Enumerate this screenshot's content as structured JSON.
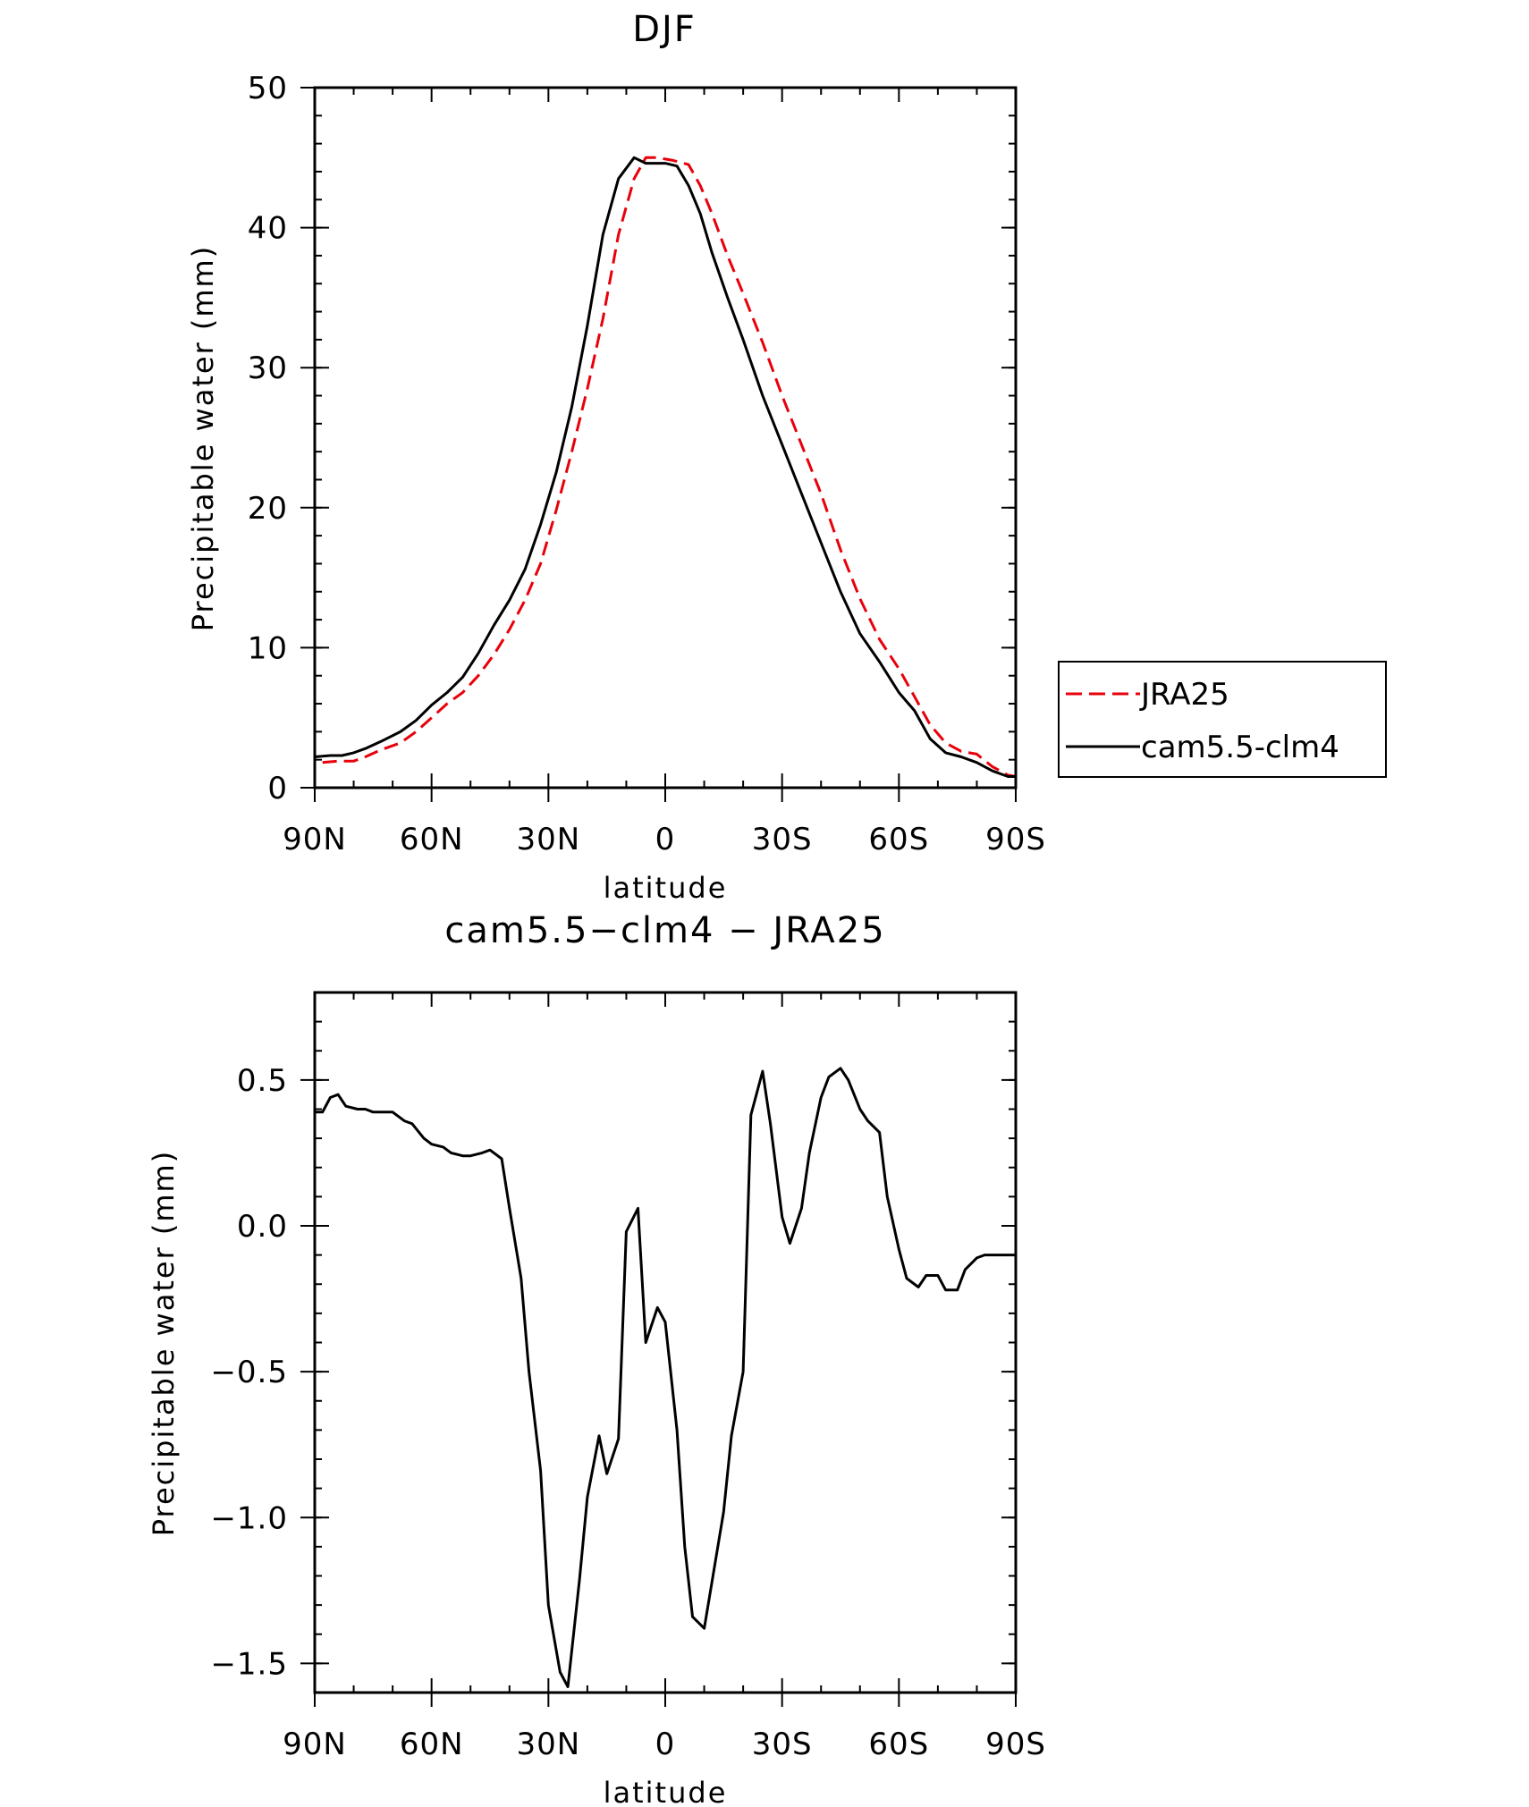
{
  "chart_data": [
    {
      "type": "line",
      "title": "DJF",
      "xlabel": "latitude",
      "ylabel": "Precipitable water (mm)",
      "x_ticks": [
        {
          "value": -90,
          "label": "90N"
        },
        {
          "value": -60,
          "label": "60N"
        },
        {
          "value": -30,
          "label": "30N"
        },
        {
          "value": 0,
          "label": "0"
        },
        {
          "value": 30,
          "label": "30S"
        },
        {
          "value": 60,
          "label": "60S"
        },
        {
          "value": 90,
          "label": "90S"
        }
      ],
      "xlim": [
        -90,
        90
      ],
      "y_ticks": [
        {
          "value": 0,
          "label": "0"
        },
        {
          "value": 10,
          "label": "10"
        },
        {
          "value": 20,
          "label": "20"
        },
        {
          "value": 30,
          "label": "30"
        },
        {
          "value": 40,
          "label": "40"
        },
        {
          "value": 50,
          "label": "50"
        }
      ],
      "ylim": [
        0,
        50
      ],
      "grid": false,
      "legend_position": "right",
      "series": [
        {
          "name": "JRA25",
          "color": "#e8000b",
          "dash": "dashed",
          "x": [
            -88,
            -84,
            -80,
            -77,
            -73,
            -68,
            -64,
            -60,
            -56,
            -52,
            -48,
            -44,
            -40,
            -36,
            -32,
            -28,
            -24,
            -20,
            -16,
            -12,
            -8,
            -5,
            -2,
            0,
            2,
            6,
            9,
            12,
            16,
            20,
            25,
            30,
            35,
            40,
            45,
            50,
            55,
            60,
            64,
            68,
            72,
            76,
            80,
            84,
            88,
            90
          ],
          "y": [
            1.8,
            1.9,
            1.9,
            2.2,
            2.7,
            3.2,
            4.0,
            5.0,
            6.0,
            6.8,
            8.0,
            9.5,
            11.3,
            13.4,
            16.0,
            19.8,
            24.0,
            28.5,
            33.5,
            39.5,
            43.5,
            45.0,
            45.0,
            44.9,
            44.8,
            44.5,
            43.0,
            41.0,
            38.0,
            35.3,
            31.8,
            28.0,
            24.5,
            21.0,
            17.0,
            13.5,
            10.6,
            8.5,
            6.5,
            4.5,
            3.2,
            2.6,
            2.4,
            1.5,
            0.9,
            0.8
          ]
        },
        {
          "name": "cam5.5-clm4",
          "color": "#000000",
          "dash": "solid",
          "x": [
            -90,
            -86,
            -83,
            -80,
            -77,
            -73,
            -68,
            -64,
            -60,
            -56,
            -52,
            -48,
            -44,
            -40,
            -36,
            -32,
            -28,
            -24,
            -20,
            -16,
            -12,
            -8,
            -5,
            -2,
            0,
            3,
            6,
            9,
            12,
            16,
            20,
            25,
            30,
            35,
            40,
            45,
            50,
            55,
            60,
            64,
            68,
            72,
            76,
            80,
            84,
            88,
            90
          ],
          "y": [
            2.2,
            2.3,
            2.3,
            2.5,
            2.8,
            3.3,
            4.0,
            4.8,
            5.9,
            6.8,
            7.9,
            9.6,
            11.6,
            13.4,
            15.6,
            18.8,
            22.5,
            27.2,
            33.0,
            39.5,
            43.5,
            45.0,
            44.6,
            44.6,
            44.6,
            44.4,
            43.0,
            41.0,
            38.2,
            35.0,
            32.0,
            28.0,
            24.5,
            21.0,
            17.5,
            14.0,
            11.0,
            9.0,
            6.8,
            5.5,
            3.5,
            2.5,
            2.2,
            1.8,
            1.2,
            0.8,
            0.8
          ]
        }
      ]
    },
    {
      "type": "line",
      "title": "cam5.5−clm4 − JRA25",
      "xlabel": "latitude",
      "ylabel": "Precipitable water (mm)",
      "x_ticks": [
        {
          "value": -90,
          "label": "90N"
        },
        {
          "value": -60,
          "label": "60N"
        },
        {
          "value": -30,
          "label": "30N"
        },
        {
          "value": 0,
          "label": "0"
        },
        {
          "value": 30,
          "label": "30S"
        },
        {
          "value": 60,
          "label": "60S"
        },
        {
          "value": 90,
          "label": "90S"
        }
      ],
      "xlim": [
        -90,
        90
      ],
      "y_ticks": [
        {
          "value": 0.5,
          "label": "0.5"
        },
        {
          "value": 0.0,
          "label": "0.0"
        },
        {
          "value": -0.5,
          "label": "−0.5"
        },
        {
          "value": -1.0,
          "label": "−1.0"
        },
        {
          "value": -1.5,
          "label": "−1.5"
        }
      ],
      "ylim": [
        -1.6,
        0.8
      ],
      "grid": false,
      "series": [
        {
          "color": "#000000",
          "dash": "solid",
          "x": [
            -90,
            -88,
            -86,
            -84,
            -82,
            -79,
            -77,
            -75,
            -72,
            -70,
            -67,
            -65,
            -62,
            -60,
            -57,
            -55,
            -52,
            -50,
            -47,
            -45,
            -42,
            -40,
            -37,
            -35,
            -32,
            -30,
            -27,
            -25,
            -22,
            -20,
            -17,
            -15,
            -12,
            -10,
            -7,
            -5,
            -2,
            0,
            3,
            5,
            7,
            10,
            12,
            15,
            17,
            20,
            22,
            25,
            27,
            30,
            32,
            35,
            37,
            40,
            42,
            45,
            47,
            50,
            52,
            55,
            57,
            60,
            62,
            65,
            67,
            70,
            72,
            75,
            77,
            80,
            82,
            85,
            87,
            90
          ],
          "y": [
            0.39,
            0.39,
            0.44,
            0.45,
            0.41,
            0.4,
            0.4,
            0.39,
            0.39,
            0.39,
            0.36,
            0.35,
            0.3,
            0.28,
            0.27,
            0.25,
            0.24,
            0.24,
            0.25,
            0.26,
            0.23,
            0.06,
            -0.18,
            -0.5,
            -0.84,
            -1.3,
            -1.53,
            -1.58,
            -1.21,
            -0.93,
            -0.72,
            -0.85,
            -0.73,
            -0.02,
            0.06,
            -0.4,
            -0.28,
            -0.33,
            -0.7,
            -1.1,
            -1.34,
            -1.38,
            -1.22,
            -0.98,
            -0.72,
            -0.5,
            0.38,
            0.53,
            0.35,
            0.03,
            -0.06,
            0.06,
            0.25,
            0.44,
            0.51,
            0.54,
            0.5,
            0.4,
            0.36,
            0.32,
            0.1,
            -0.08,
            -0.18,
            -0.21,
            -0.17,
            -0.17,
            -0.22,
            -0.22,
            -0.15,
            -0.11,
            -0.1,
            -0.1,
            -0.1,
            -0.1
          ]
        }
      ]
    }
  ]
}
